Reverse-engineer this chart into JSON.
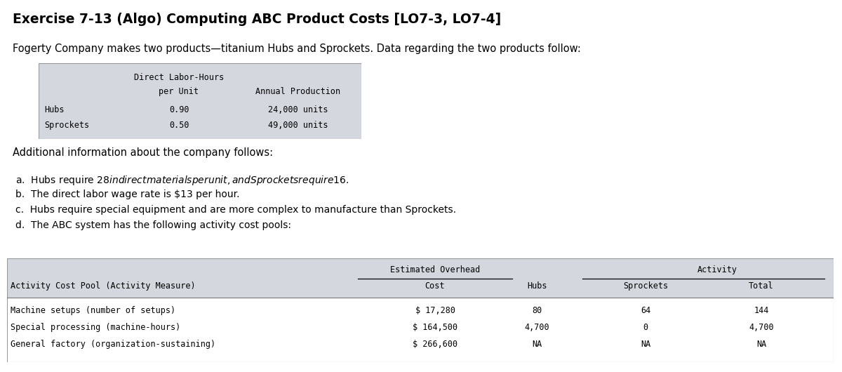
{
  "title": "Exercise 7-13 (Algo) Computing ABC Product Costs [LO7-3, LO7-4]",
  "intro_text": "Fogerty Company makes two products—titanium Hubs and Sprockets. Data regarding the two products follow:",
  "table1": {
    "header_row1": "Direct Labor-Hours",
    "header_row2_col1": "per Unit",
    "header_row2_col2": "Annual Production",
    "rows": [
      [
        "Hubs",
        "0.90",
        "24,000 units"
      ],
      [
        "Sprockets",
        "0.50",
        "49,000 units"
      ]
    ],
    "bg_color": "#d4d7de"
  },
  "additional_text": "Additional information about the company follows:",
  "bullet_points": [
    "a.  Hubs require $28 in direct materials per unit, and Sprockets require $16.",
    "b.  The direct labor wage rate is $13 per hour.",
    "c.  Hubs require special equipment and are more complex to manufacture than Sprockets.",
    "d.  The ABC system has the following activity cost pools:"
  ],
  "table2": {
    "span_header1": "Estimated Overhead",
    "span_header2": "Activity",
    "col_headers": [
      "Activity Cost Pool (Activity Measure)",
      "Cost",
      "Hubs",
      "Sprockets",
      "Total"
    ],
    "rows": [
      [
        "Machine setups (number of setups)",
        "$ 17,280",
        "80",
        "64",
        "144"
      ],
      [
        "Special processing (machine-hours)",
        "$ 164,500",
        "4,700",
        "0",
        "4,700"
      ],
      [
        "General factory (organization-sustaining)",
        "$ 266,600",
        "NA",
        "NA",
        "NA"
      ]
    ],
    "bg_color": "#d4d7de"
  },
  "bg_color": "#ffffff"
}
